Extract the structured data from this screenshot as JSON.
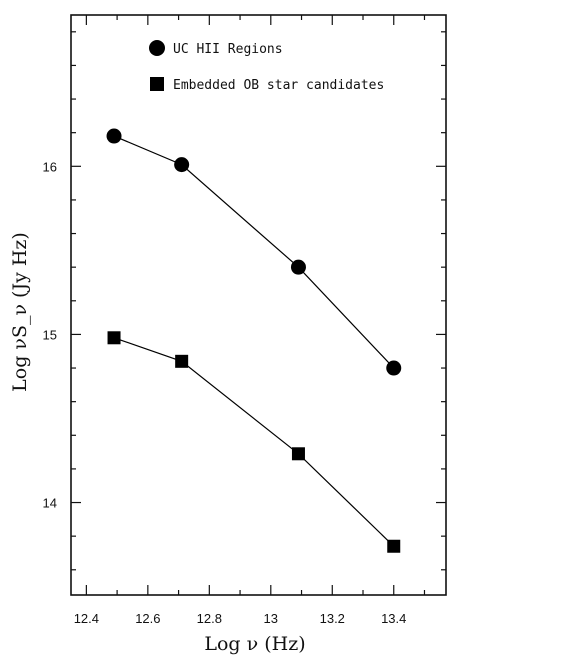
{
  "chart_data": {
    "type": "line",
    "title": "",
    "xlabel": "Log ν (Hz)",
    "ylabel": "Log νS_ν (Jy Hz)",
    "xlim": [
      12.35,
      13.57
    ],
    "ylim": [
      13.45,
      16.9
    ],
    "x_ticks": [
      12.4,
      12.6,
      12.8,
      13,
      13.2,
      13.4
    ],
    "x_tick_labels": [
      "12.4",
      "12.6",
      "12.8",
      "13",
      "13.2",
      "13.4"
    ],
    "y_ticks": [
      14,
      15,
      16
    ],
    "y_tick_labels": [
      "14",
      "15",
      "16"
    ],
    "grid": false,
    "legend_position": "top-right",
    "series": [
      {
        "name": "UC HII Regions",
        "marker": "circle",
        "color": "#000000",
        "points": [
          {
            "x": 12.49,
            "y": 16.18
          },
          {
            "x": 12.71,
            "y": 16.01
          },
          {
            "x": 13.09,
            "y": 15.4
          },
          {
            "x": 13.4,
            "y": 14.8
          }
        ]
      },
      {
        "name": "Embedded OB star candidates",
        "marker": "square",
        "color": "#000000",
        "points": [
          {
            "x": 12.49,
            "y": 14.98
          },
          {
            "x": 12.71,
            "y": 14.84
          },
          {
            "x": 13.09,
            "y": 14.29
          },
          {
            "x": 13.4,
            "y": 13.74
          }
        ]
      }
    ]
  }
}
